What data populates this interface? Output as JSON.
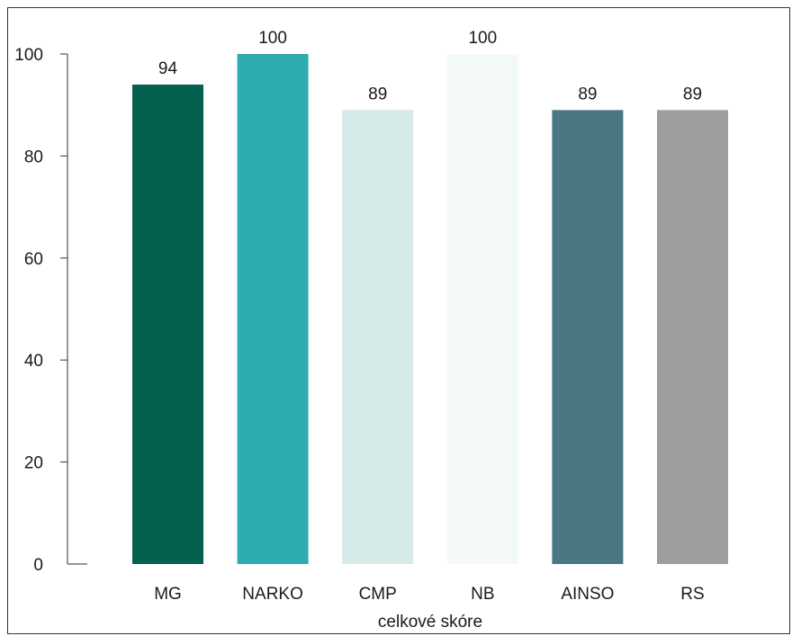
{
  "chart_data": {
    "type": "bar",
    "title": "",
    "xlabel": "celkové skóre",
    "ylabel": "",
    "categories": [
      "MG",
      "NARKO",
      "CMP",
      "NB",
      "AINSO",
      "RS"
    ],
    "values": [
      94,
      100,
      89,
      100,
      89,
      89
    ],
    "value_labels": [
      "94",
      "100",
      "89",
      "100",
      "89",
      "89"
    ],
    "colors": [
      "#04604f",
      "#2eabb1",
      "#d6ebe9",
      "#f3f9f9",
      "#4a7882",
      "#9d9d9c"
    ],
    "ylim": [
      0,
      100
    ],
    "yticks": [
      0,
      20,
      40,
      60,
      80,
      100
    ],
    "grid": false,
    "legend": "none"
  }
}
